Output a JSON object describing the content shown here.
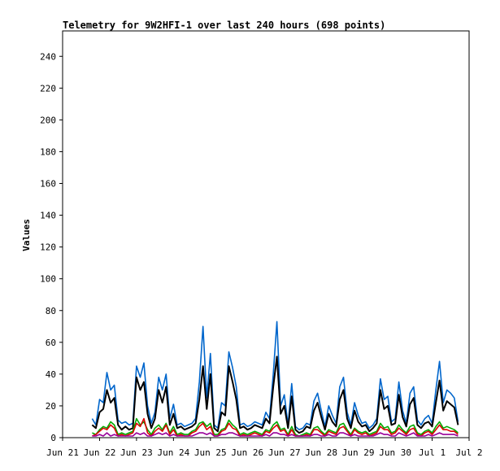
{
  "chart_data": {
    "type": "line",
    "title": "Telemetry for 9W2HFI-1 over last 240 hours (698 points)",
    "xlabel": "",
    "ylabel": "Values",
    "x_ticks": [
      "Jun 21",
      "Jun 22",
      "Jun 23",
      "Jun 24",
      "Jun 25",
      "Jun 26",
      "Jun 27",
      "Jun 28",
      "Jun 29",
      "Jun 30",
      "Jul 1",
      "Jul 2"
    ],
    "y_ticks": [
      0,
      20,
      40,
      60,
      80,
      100,
      120,
      140,
      160,
      180,
      200,
      220,
      240
    ],
    "xlim": [
      "Jun 21",
      "Jul 2"
    ],
    "ylim": [
      0,
      256
    ],
    "grid": false,
    "legend": "none",
    "x_days": [
      0.8,
      0.9,
      1.0,
      1.1,
      1.2,
      1.3,
      1.4,
      1.5,
      1.6,
      1.7,
      1.8,
      1.9,
      2.0,
      2.1,
      2.2,
      2.3,
      2.4,
      2.5,
      2.6,
      2.7,
      2.8,
      2.9,
      3.0,
      3.1,
      3.2,
      3.3,
      3.4,
      3.5,
      3.6,
      3.7,
      3.8,
      3.9,
      4.0,
      4.1,
      4.2,
      4.3,
      4.4,
      4.5,
      4.6,
      4.7,
      4.8,
      4.9,
      5.0,
      5.1,
      5.2,
      5.3,
      5.4,
      5.5,
      5.6,
      5.7,
      5.8,
      5.9,
      6.0,
      6.1,
      6.2,
      6.3,
      6.4,
      6.5,
      6.6,
      6.7,
      6.8,
      6.9,
      7.0,
      7.1,
      7.2,
      7.3,
      7.4,
      7.5,
      7.6,
      7.7,
      7.8,
      7.9,
      8.0,
      8.1,
      8.2,
      8.3,
      8.4,
      8.5,
      8.6,
      8.7,
      8.8,
      8.9,
      9.0,
      9.1,
      9.2,
      9.3,
      9.4,
      9.5,
      9.6,
      9.7,
      9.8,
      9.9,
      10.0,
      10.1,
      10.2,
      10.3,
      10.4,
      10.5,
      10.6,
      10.7,
      10.8,
      10.9
    ],
    "series": [
      {
        "color": "#0066cc",
        "values": [
          12,
          8,
          24,
          22,
          41,
          30,
          33,
          11,
          9,
          10,
          8,
          9,
          45,
          38,
          47,
          20,
          9,
          16,
          38,
          30,
          40,
          12,
          21,
          8,
          9,
          7,
          8,
          9,
          12,
          35,
          70,
          25,
          53,
          8,
          6,
          22,
          20,
          54,
          44,
          32,
          8,
          9,
          7,
          8,
          10,
          9,
          8,
          16,
          12,
          40,
          73,
          20,
          27,
          8,
          34,
          7,
          5,
          6,
          9,
          8,
          23,
          28,
          17,
          7,
          20,
          14,
          9,
          32,
          38,
          16,
          8,
          22,
          14,
          9,
          10,
          6,
          8,
          12,
          37,
          24,
          26,
          10,
          12,
          35,
          17,
          9,
          28,
          32,
          11,
          8,
          12,
          14,
          9,
          30,
          48,
          22,
          30,
          28,
          25,
          10
        ]
      },
      {
        "color": "#000000",
        "values": [
          8,
          6,
          16,
          18,
          30,
          22,
          25,
          8,
          5,
          7,
          5,
          6,
          38,
          30,
          35,
          15,
          6,
          12,
          30,
          22,
          32,
          8,
          15,
          6,
          7,
          5,
          6,
          7,
          9,
          24,
          45,
          18,
          40,
          6,
          4,
          16,
          14,
          45,
          35,
          24,
          6,
          7,
          5,
          6,
          8,
          7,
          6,
          12,
          9,
          32,
          51,
          15,
          20,
          6,
          26,
          5,
          3,
          4,
          7,
          6,
          17,
          22,
          13,
          5,
          15,
          10,
          7,
          24,
          30,
          12,
          6,
          17,
          10,
          7,
          8,
          4,
          6,
          9,
          30,
          18,
          20,
          8,
          9,
          27,
          13,
          7,
          21,
          25,
          8,
          6,
          9,
          10,
          7,
          22,
          36,
          17,
          23,
          21,
          19,
          8
        ]
      },
      {
        "color": "#00aa00",
        "values": [
          3,
          2,
          5,
          7,
          6,
          10,
          8,
          2,
          3,
          2,
          3,
          4,
          12,
          8,
          10,
          5,
          2,
          6,
          8,
          5,
          9,
          3,
          7,
          2,
          3,
          2,
          2,
          4,
          5,
          9,
          10,
          7,
          9,
          2,
          2,
          5,
          6,
          11,
          8,
          6,
          2,
          3,
          2,
          3,
          4,
          3,
          2,
          5,
          4,
          8,
          10,
          5,
          6,
          2,
          7,
          2,
          1,
          2,
          3,
          2,
          6,
          7,
          4,
          2,
          5,
          4,
          3,
          8,
          9,
          5,
          2,
          6,
          4,
          3,
          4,
          2,
          3,
          4,
          9,
          6,
          7,
          3,
          4,
          8,
          5,
          3,
          7,
          8,
          3,
          2,
          4,
          5,
          3,
          7,
          10,
          6,
          7,
          6,
          5,
          3
        ]
      },
      {
        "color": "#dd0000",
        "values": [
          1,
          2,
          4,
          6,
          5,
          8,
          6,
          1,
          2,
          1,
          2,
          3,
          9,
          7,
          12,
          3,
          1,
          4,
          6,
          4,
          8,
          2,
          5,
          1,
          2,
          1,
          1,
          3,
          4,
          7,
          9,
          5,
          7,
          1,
          1,
          4,
          5,
          9,
          6,
          5,
          1,
          2,
          1,
          2,
          3,
          2,
          1,
          4,
          3,
          6,
          8,
          4,
          5,
          1,
          5,
          1,
          1,
          1,
          2,
          1,
          5,
          5,
          3,
          1,
          4,
          3,
          2,
          6,
          7,
          4,
          1,
          5,
          3,
          2,
          3,
          1,
          2,
          3,
          7,
          5,
          5,
          2,
          3,
          6,
          4,
          2,
          5,
          6,
          2,
          1,
          3,
          4,
          2,
          5,
          8,
          5,
          5,
          4,
          4,
          2
        ]
      },
      {
        "color": "#990099",
        "values": [
          1,
          1,
          2,
          1,
          3,
          1,
          2,
          1,
          1,
          1,
          1,
          1,
          3,
          2,
          3,
          1,
          1,
          2,
          3,
          2,
          3,
          1,
          2,
          1,
          1,
          1,
          1,
          1,
          2,
          3,
          3,
          2,
          3,
          1,
          1,
          2,
          2,
          3,
          3,
          2,
          1,
          1,
          1,
          1,
          1,
          1,
          1,
          2,
          1,
          3,
          3,
          2,
          2,
          1,
          2,
          1,
          1,
          1,
          1,
          1,
          2,
          2,
          1,
          1,
          2,
          1,
          1,
          3,
          3,
          2,
          1,
          2,
          1,
          1,
          1,
          1,
          1,
          2,
          3,
          2,
          2,
          1,
          1,
          3,
          2,
          1,
          2,
          3,
          1,
          1,
          1,
          2,
          1,
          2,
          3,
          2,
          2,
          2,
          2,
          1
        ]
      }
    ]
  }
}
